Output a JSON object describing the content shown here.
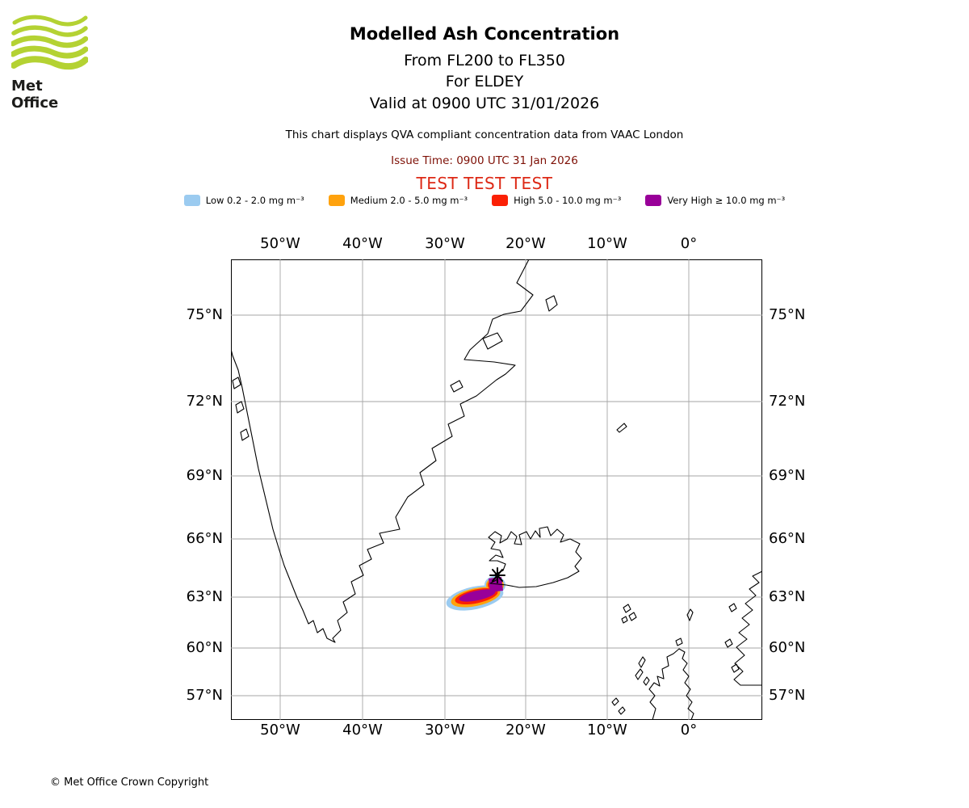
{
  "logo": {
    "text": "Met Office"
  },
  "header": {
    "title": "Modelled Ash Concentration",
    "subtitle_levels": "From FL200 to FL350",
    "subtitle_volcano": "For ELDEY",
    "subtitle_valid": "Valid at 0900 UTC 31/01/2026",
    "note": "This chart displays QVA compliant concentration data from VAAC London",
    "issue_time": "Issue Time: 0900 UTC 31 Jan 2026",
    "test_banner": "TEST TEST TEST"
  },
  "legend": {
    "items": [
      {
        "key": "low",
        "label": "Low 0.2 - 2.0 mg m⁻³",
        "color": "#9bcbf0"
      },
      {
        "key": "medium",
        "label": "Medium 2.0 - 5.0 mg m⁻³",
        "color": "#ffa20d"
      },
      {
        "key": "high",
        "label": "High 5.0 - 10.0 mg m⁻³",
        "color": "#fb2005"
      },
      {
        "key": "very_high",
        "label": "Very High ≥ 10.0 mg m⁻³",
        "color": "#990099"
      }
    ]
  },
  "map": {
    "x_ticks": [
      "50°W",
      "40°W",
      "30°W",
      "20°W",
      "10°W",
      "0°"
    ],
    "y_ticks": [
      "75°N",
      "72°N",
      "69°N",
      "66°N",
      "63°N",
      "60°N",
      "57°N"
    ]
  },
  "footer": {
    "copyright": "© Met Office Crown Copyright"
  },
  "chart_data": {
    "type": "map",
    "title": "Modelled Ash Concentration",
    "flight_levels": "FL200 to FL350",
    "volcano": "ELDEY",
    "valid_time": "0900 UTC 31/01/2026",
    "issue_time": "0900 UTC 31 Jan 2026",
    "data_source": "QVA compliant concentration data from VAAC London",
    "status": "TEST TEST TEST",
    "lon_gridlines": [
      "50°W",
      "40°W",
      "30°W",
      "20°W",
      "10°W",
      "0°"
    ],
    "lat_gridlines": [
      "75°N",
      "72°N",
      "69°N",
      "66°N",
      "63°N",
      "60°N",
      "57°N"
    ],
    "concentration_bands": [
      {
        "band": "Low",
        "range": "0.2 - 2.0 mg m⁻³"
      },
      {
        "band": "Medium",
        "range": "2.0 - 5.0 mg m⁻³"
      },
      {
        "band": "High",
        "range": "5.0 - 10.0 mg m⁻³"
      },
      {
        "band": "Very High",
        "range": "≥ 10.0 mg m⁻³"
      }
    ],
    "plume": {
      "description": "Nested concentration contours extending WSW from the ELDEY eruption site off southwest Iceland, Very High core surrounded by High, Medium and Low fringes",
      "approx_lon_extent": [
        "28°W",
        "22°W"
      ],
      "approx_lat_extent": [
        "62.5°N",
        "64°N"
      ]
    },
    "visible_regions": [
      "Greenland",
      "Iceland",
      "Jan Mayen",
      "Faroe Islands",
      "Scotland",
      "Norway"
    ]
  }
}
